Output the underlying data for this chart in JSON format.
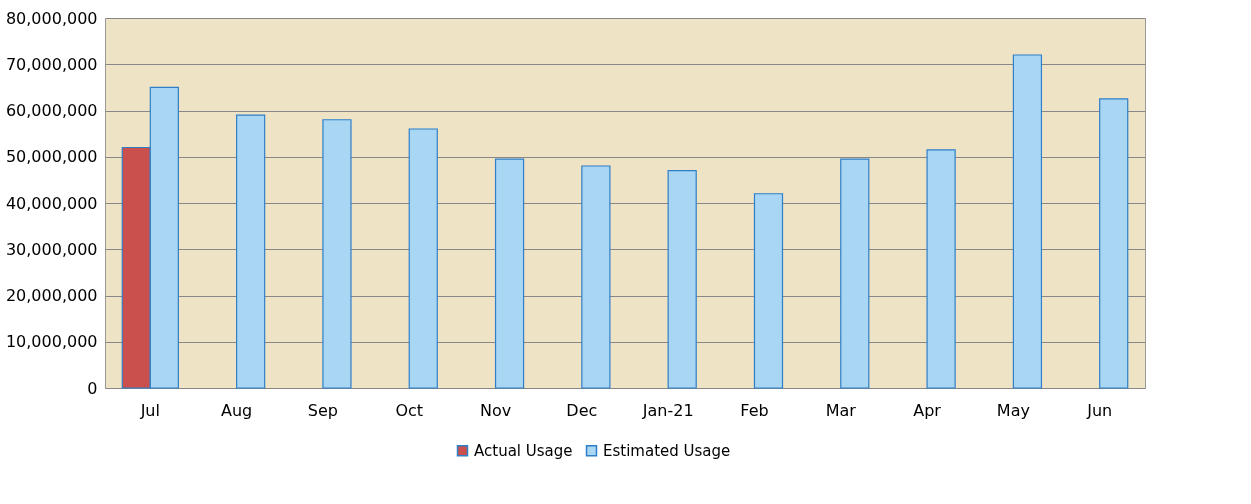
{
  "chart_data": {
    "type": "bar",
    "categories": [
      "Jul",
      "Aug",
      "Sep",
      "Oct",
      "Nov",
      "Dec",
      "Jan-21",
      "Feb",
      "Mar",
      "Apr",
      "May",
      "Jun"
    ],
    "series": [
      {
        "name": "Actual Usage",
        "color": "#c9504c",
        "values": [
          52000000,
          null,
          null,
          null,
          null,
          null,
          null,
          null,
          null,
          null,
          null,
          null
        ]
      },
      {
        "name": "Estimated Usage",
        "color": "#a9d6f2",
        "values": [
          65000000,
          59000000,
          58000000,
          56000000,
          49500000,
          48000000,
          47000000,
          42000000,
          49500000,
          51500000,
          72000000,
          62500000
        ]
      }
    ],
    "ylim": [
      0,
      80000000
    ],
    "yticks": [
      0,
      {
        "value": 10000000,
        "label": "10,000,000"
      },
      {
        "value": 20000000,
        "label": "20,000,000"
      },
      {
        "value": 30000000,
        "label": "30,000,000"
      },
      {
        "value": 40000000,
        "label": "40,000,000"
      },
      {
        "value": 50000000,
        "label": "50,000,000"
      },
      {
        "value": 60000000,
        "label": "60,000,000"
      },
      {
        "value": 70000000,
        "label": "70,000,000"
      },
      {
        "value": 80000000,
        "label": "80,000,000"
      }
    ],
    "grid": "y",
    "legend": "bottom"
  }
}
